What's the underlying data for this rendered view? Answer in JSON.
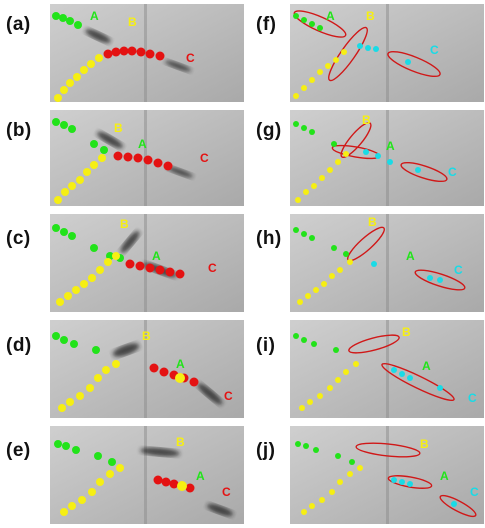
{
  "colors": {
    "background_gray": "#b9b9b9",
    "green": "#22e31a",
    "yellow": "#f6ef13",
    "red": "#e41212",
    "cyan": "#19dbe6",
    "ellipse_red": "#d01818",
    "streak": "#1a1a1a"
  },
  "panels": {
    "a": {
      "label": "(a)",
      "particles": {
        "A": "A",
        "B": "B",
        "C": "C"
      }
    },
    "b": {
      "label": "(b)",
      "particles": {
        "A": "A",
        "B": "B",
        "C": "C"
      }
    },
    "c": {
      "label": "(c)",
      "particles": {
        "A": "A",
        "B": "B",
        "C": "C"
      }
    },
    "d": {
      "label": "(d)",
      "particles": {
        "A": "A",
        "B": "B",
        "C": "C"
      }
    },
    "e": {
      "label": "(e)",
      "particles": {
        "A": "A",
        "B": "B",
        "C": "C"
      }
    },
    "f": {
      "label": "(f)",
      "particles": {
        "A": "A",
        "B": "B",
        "C": "C"
      }
    },
    "g": {
      "label": "(g)",
      "particles": {
        "A": "A",
        "B": "B",
        "C": "C"
      }
    },
    "h": {
      "label": "(h)",
      "particles": {
        "A": "A",
        "B": "B",
        "C": "C"
      }
    },
    "i": {
      "label": "(i)",
      "particles": {
        "A": "A",
        "B": "B",
        "C": "C"
      }
    },
    "j": {
      "label": "(j)",
      "particles": {
        "A": "A",
        "B": "B",
        "C": "C"
      }
    }
  }
}
